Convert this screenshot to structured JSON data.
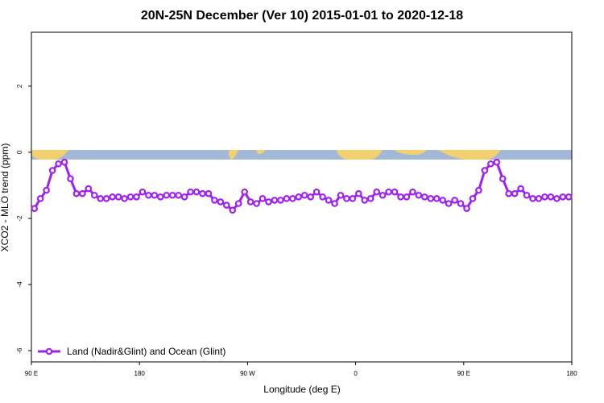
{
  "chart_data": {
    "type": "line",
    "title": "20N-25N December (Ver 10)   2015-01-01 to 2020-12-18",
    "x_label": "Longitude (deg E)",
    "y_label": "XCO2 - MLO trend (ppm)",
    "x": [
      92.5,
      97.5,
      102.5,
      107.5,
      112.5,
      117.5,
      122.5,
      127.5,
      132.5,
      137.5,
      142.5,
      147.5,
      152.5,
      157.5,
      162.5,
      167.5,
      172.5,
      177.5,
      182.5,
      187.5,
      192.5,
      197.5,
      202.5,
      207.5,
      212.5,
      217.5,
      222.5,
      227.5,
      232.5,
      237.5,
      242.5,
      247.5,
      252.5,
      257.5,
      262.5,
      267.5,
      272.5,
      277.5,
      282.5,
      287.5,
      292.5,
      297.5,
      302.5,
      307.5,
      312.5,
      317.5,
      322.5,
      327.5,
      332.5,
      337.5,
      342.5,
      347.5,
      352.5,
      357.5,
      362.5,
      367.5,
      372.5,
      377.5,
      382.5,
      387.5,
      392.5,
      397.5,
      402.5,
      407.5,
      412.5,
      417.5,
      422.5,
      427.5,
      432.5,
      437.5,
      442.5,
      447.5,
      452.5,
      457.5,
      462.5,
      467.5,
      472.5,
      477.5,
      482.5,
      487.5,
      492.5,
      497.5,
      502.5,
      507.5,
      512.5,
      517.5,
      522.5,
      527.5,
      532.5,
      537.5
    ],
    "series": [
      {
        "name": "Land (Nadir&Glint) and Ocean (Glint)",
        "color": "#a020f0",
        "values": [
          -1.7,
          -1.4,
          -1.15,
          -0.55,
          -0.35,
          -0.3,
          -0.8,
          -1.25,
          -1.25,
          -1.1,
          -1.3,
          -1.4,
          -1.4,
          -1.35,
          -1.35,
          -1.4,
          -1.35,
          -1.35,
          -1.2,
          -1.3,
          -1.3,
          -1.35,
          -1.3,
          -1.3,
          -1.3,
          -1.35,
          -1.2,
          -1.2,
          -1.25,
          -1.25,
          -1.45,
          -1.5,
          -1.6,
          -1.75,
          -1.55,
          -1.2,
          -1.5,
          -1.55,
          -1.4,
          -1.5,
          -1.45,
          -1.45,
          -1.4,
          -1.4,
          -1.35,
          -1.3,
          -1.35,
          -1.2,
          -1.35,
          -1.45,
          -1.55,
          -1.3,
          -1.4,
          -1.4,
          -1.25,
          -1.45,
          -1.4,
          -1.2,
          -1.3,
          -1.2,
          -1.2,
          -1.35,
          -1.35,
          -1.2,
          -1.3,
          -1.35,
          -1.4,
          -1.4,
          -1.45,
          -1.55,
          -1.45,
          -1.55,
          -1.7,
          -1.4,
          -1.15,
          -0.55,
          -0.35,
          -0.3,
          -0.8,
          -1.25,
          -1.25,
          -1.1,
          -1.3,
          -1.4,
          -1.4,
          -1.35,
          -1.35,
          -1.4,
          -1.35,
          -1.35
        ]
      }
    ],
    "xlim": [
      90,
      540
    ],
    "xticks": [
      {
        "value": 90,
        "label": "90 E"
      },
      {
        "value": 180,
        "label": "180"
      },
      {
        "value": 270,
        "label": "90 W"
      },
      {
        "value": 360,
        "label": "0"
      },
      {
        "value": 450,
        "label": "90 E"
      },
      {
        "value": 540,
        "label": "180"
      }
    ],
    "ylim": [
      -6.34,
      3.63
    ],
    "yticks": [
      -6,
      -4,
      -2,
      0,
      2
    ],
    "legend": "bottom-left"
  }
}
